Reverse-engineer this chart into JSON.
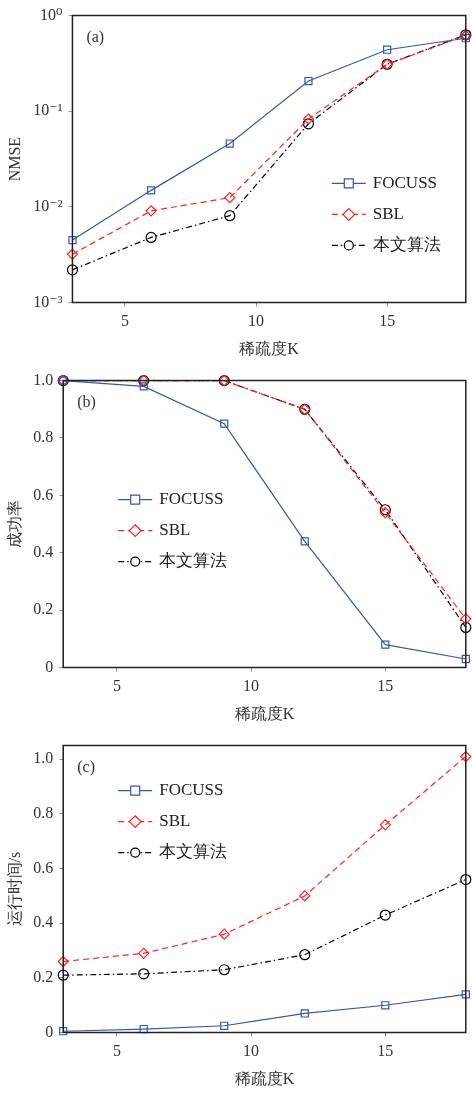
{
  "chart_data": [
    {
      "type": "line",
      "xlabel": "稀疏度K",
      "ylabel": "NMSE",
      "annotations": [
        "(a)"
      ],
      "x": [
        3,
        6,
        9,
        12,
        15,
        18
      ],
      "log": "y",
      "xlim": [
        3,
        18
      ],
      "xticks": [
        5,
        10,
        15
      ],
      "ylim": [
        0.001,
        1
      ],
      "yticks": [
        {
          "value": 0.001,
          "label": "10⁻³"
        },
        {
          "value": 0.01,
          "label": "10⁻²"
        },
        {
          "value": 0.1,
          "label": "10⁻¹"
        },
        {
          "value": 1,
          "label": "10⁰"
        }
      ],
      "grid": false,
      "legend": "right",
      "series": [
        {
          "name": "FOCUSS",
          "color": "#3a56a8",
          "marker": "square",
          "line_style": "solid",
          "values": [
            0.0045,
            0.0149,
            0.046,
            0.207,
            0.44,
            0.58
          ]
        },
        {
          "name": "SBL",
          "color": "#ff2020",
          "marker": "diamond",
          "line_style": "dashed",
          "values": [
            0.0032,
            0.0091,
            0.0125,
            0.083,
            0.31,
            0.62
          ]
        },
        {
          "name": "本文算法",
          "color": "#000000",
          "marker": "circle",
          "line_style": "dashdot",
          "values": [
            0.0022,
            0.0048,
            0.0081,
            0.074,
            0.31,
            0.63
          ]
        }
      ]
    },
    {
      "type": "line",
      "xlabel": "稀疏度K",
      "ylabel": "成功率",
      "annotations": [
        "(b)"
      ],
      "x": [
        3,
        6,
        9,
        12,
        15,
        18
      ],
      "xlim": [
        3,
        18
      ],
      "xticks": [
        5,
        10,
        15
      ],
      "ylim": [
        0,
        1
      ],
      "yticks": [
        0,
        {
          "value": 0.2,
          "label": "0.2"
        },
        {
          "value": 0.4,
          "label": "0.4"
        },
        {
          "value": 0.6,
          "label": "0.6"
        },
        {
          "value": 0.8,
          "label": "0.8"
        },
        {
          "value": 1,
          "label": "1.0"
        }
      ],
      "grid": false,
      "legend": "bottom left",
      "series": [
        {
          "name": "FOCUSS",
          "color": "#3a56a8",
          "marker": "square",
          "line_style": "solid",
          "values": [
            1,
            0.98,
            0.85,
            0.44,
            0.08,
            0.03
          ]
        },
        {
          "name": "SBL",
          "color": "#ff2020",
          "marker": "diamond",
          "line_style": "dashed",
          "values": [
            1,
            1,
            1,
            0.9,
            0.54,
            0.17
          ]
        },
        {
          "name": "本文算法",
          "color": "#000000",
          "marker": "circle",
          "line_style": "dashdot",
          "values": [
            1,
            1,
            1,
            0.9,
            0.55,
            0.14
          ]
        }
      ]
    },
    {
      "type": "line",
      "xlabel": "稀疏度K",
      "ylabel": "运行时间/s",
      "annotations": [
        "(c)"
      ],
      "x": [
        3,
        6,
        9,
        12,
        15,
        18
      ],
      "xlim": [
        3,
        18
      ],
      "xticks": [
        5,
        10,
        15
      ],
      "ylim": [
        0,
        1.05
      ],
      "yticks": [
        0,
        {
          "value": 0.2,
          "label": "0.2"
        },
        {
          "value": 0.4,
          "label": "0.4"
        },
        {
          "value": 0.6,
          "label": "0.6"
        },
        {
          "value": 0.8,
          "label": "0.8"
        },
        {
          "value": 1,
          "label": "1.0"
        }
      ],
      "grid": false,
      "legend": "top left",
      "series": [
        {
          "name": "FOCUSS",
          "color": "#3a56a8",
          "marker": "square",
          "line_style": "solid",
          "values": [
            0.005,
            0.013,
            0.025,
            0.07,
            0.1,
            0.14
          ]
        },
        {
          "name": "SBL",
          "color": "#ff2020",
          "marker": "diamond",
          "line_style": "dashed",
          "values": [
            0.26,
            0.29,
            0.36,
            0.5,
            0.76,
            1.01
          ]
        },
        {
          "name": "本文算法",
          "color": "#000000",
          "marker": "circle",
          "line_style": "dashdot",
          "values": [
            0.21,
            0.215,
            0.23,
            0.285,
            0.43,
            0.56
          ]
        }
      ]
    }
  ]
}
